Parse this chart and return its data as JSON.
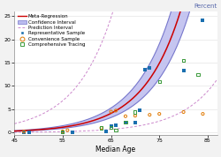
{
  "title": "Percent",
  "xlabel": "Median Age",
  "xlim": [
    45,
    87
  ],
  "ylim": [
    -0.5,
    26
  ],
  "yticks": [
    0,
    5,
    10,
    15,
    20,
    25
  ],
  "xticks": [
    45,
    55,
    65,
    75,
    85
  ],
  "regression_color": "#cc0000",
  "ci_color": "#bbbbee",
  "ci_edge_color": "#7777cc",
  "pi_color": "#cc88cc",
  "ifr_a": 0.1285,
  "ifr_x0": 54.0,
  "ci_upper_mult": 1.28,
  "ci_lower_mult": 0.78,
  "pi_upper_mult": 6.0,
  "pi_lower_mult": 0.165,
  "representative_samples": [
    [
      47,
      0.04
    ],
    [
      48,
      0.07
    ],
    [
      55,
      0.08
    ],
    [
      57,
      0.12
    ],
    [
      64,
      0.28
    ],
    [
      65,
      1.3
    ],
    [
      66,
      1.6
    ],
    [
      68,
      2.2
    ],
    [
      70,
      2.1
    ],
    [
      71,
      4.8
    ],
    [
      72,
      13.5
    ],
    [
      73,
      13.8
    ],
    [
      80,
      13.3
    ],
    [
      84,
      24.0
    ]
  ],
  "convenience_samples": [
    [
      47,
      0.18
    ],
    [
      55,
      0.25
    ],
    [
      56,
      0.5
    ],
    [
      63,
      1.0
    ],
    [
      65,
      4.5
    ],
    [
      66,
      4.7
    ],
    [
      68,
      3.5
    ],
    [
      70,
      3.6
    ],
    [
      73,
      3.8
    ],
    [
      75,
      4.0
    ],
    [
      80,
      4.4
    ],
    [
      84,
      4.0
    ]
  ],
  "comprehensive_samples": [
    [
      55,
      0.1
    ],
    [
      63,
      1.0
    ],
    [
      65,
      1.1
    ],
    [
      66,
      0.6
    ],
    [
      68,
      2.3
    ],
    [
      70,
      4.4
    ],
    [
      75,
      11.0
    ],
    [
      80,
      15.5
    ],
    [
      83,
      12.5
    ]
  ],
  "rep_color": "#1a6faf",
  "conv_color": "#e07800",
  "comp_color": "#3a9a3a",
  "bg_color": "#f2f2f2"
}
